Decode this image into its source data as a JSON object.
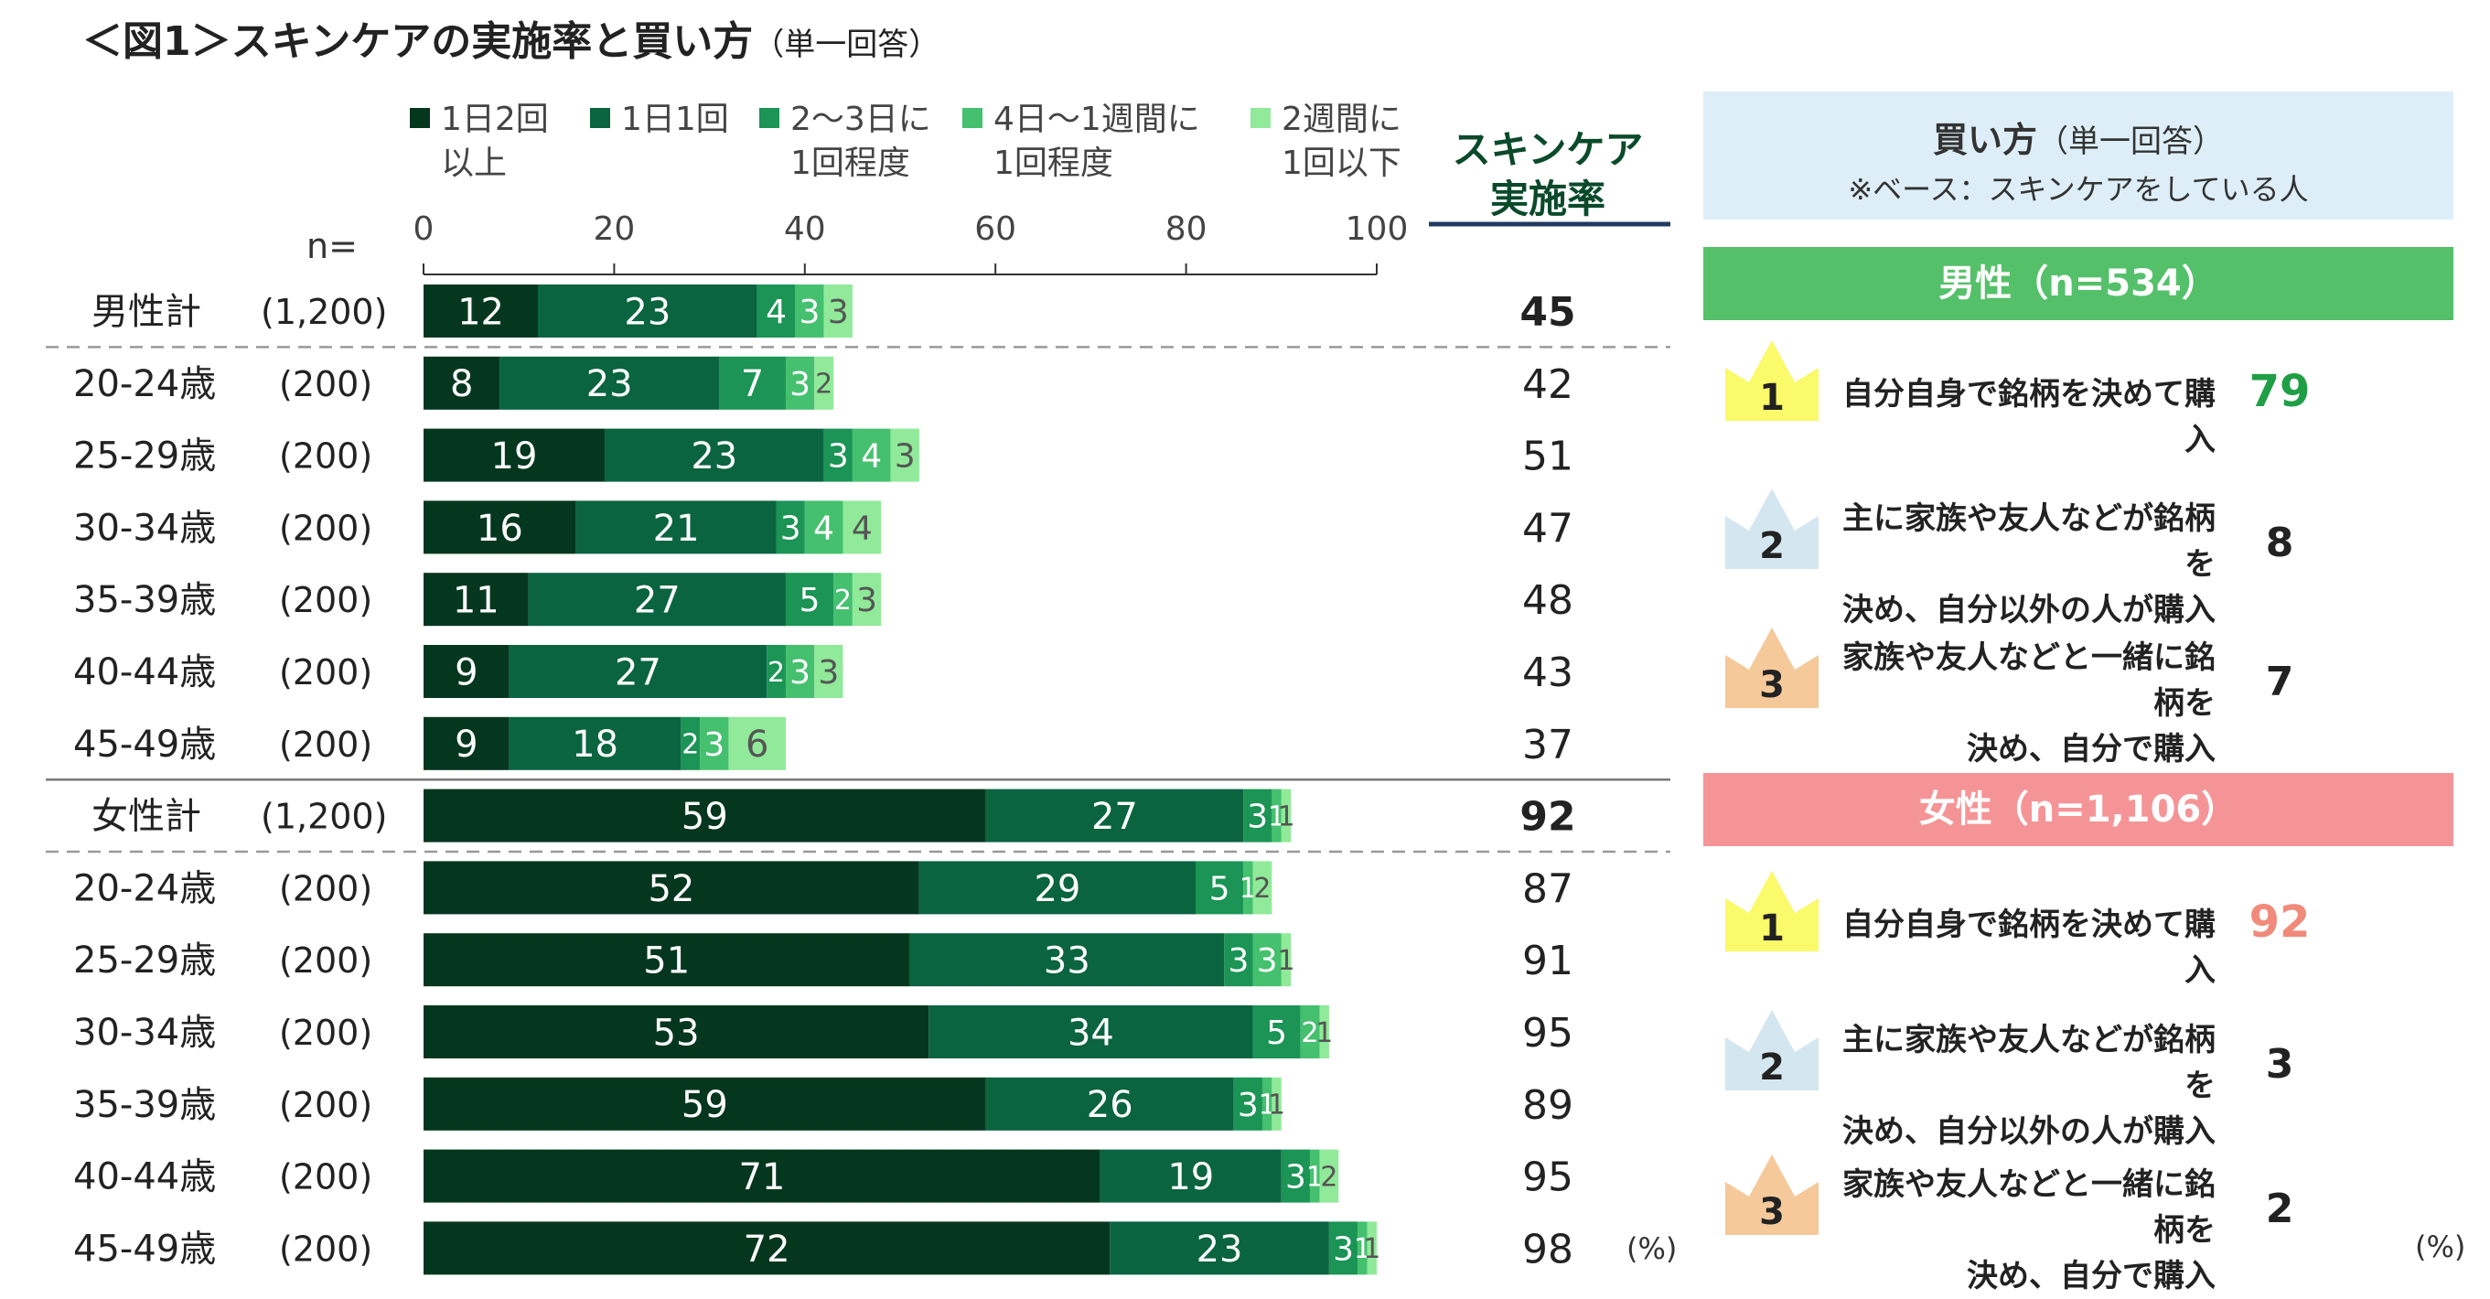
{
  "title": "＜図1＞スキンケアの実施率と買い方",
  "title_sub": "（単一回答）",
  "n_label": "n=",
  "rate_header": [
    "スキンケア",
    "実施率"
  ],
  "unit_pct": "(%)",
  "colors": {
    "seg": [
      "#05371f",
      "#0a6440",
      "#1b9455",
      "#44c06e",
      "#90ea99"
    ],
    "seg_text": [
      "#ffffff",
      "#ffffff",
      "#ffffff",
      "#ffffff",
      "#555555"
    ],
    "male_band": "#55c06a",
    "female_band": "#f59496",
    "panel_header": "#ddeef8",
    "crown1": "#fafa6a",
    "crown2": "#d4e6f0",
    "crown3": "#f5c99a",
    "male_top": "#1f9e46",
    "female_top": "#f08a7a",
    "rate_rule": "#1f3a60"
  },
  "chart_data": {
    "type": "bar",
    "orientation": "horizontal",
    "stacked": true,
    "xlim": [
      0,
      100
    ],
    "xticks": [
      0,
      20,
      40,
      60,
      80,
      100
    ],
    "legend": [
      {
        "lines": [
          "1日2回",
          "以上"
        ]
      },
      {
        "lines": [
          "1日1回"
        ]
      },
      {
        "lines": [
          "2～3日に",
          "1回程度"
        ]
      },
      {
        "lines": [
          "4日～1週間に",
          "1回程度"
        ]
      },
      {
        "lines": [
          "2週間に",
          "1回以下"
        ]
      }
    ],
    "rows": [
      {
        "label": "男性計",
        "n": "(1,200)",
        "total": true,
        "values": [
          12,
          23,
          4,
          3,
          3
        ],
        "rate": 45
      },
      {
        "label": "20-24歳",
        "n": "(200)",
        "values": [
          8,
          23,
          7,
          3,
          2
        ],
        "rate": 42
      },
      {
        "label": "25-29歳",
        "n": "(200)",
        "values": [
          19,
          23,
          3,
          4,
          3
        ],
        "rate": 51
      },
      {
        "label": "30-34歳",
        "n": "(200)",
        "values": [
          16,
          21,
          3,
          4,
          4
        ],
        "rate": 47
      },
      {
        "label": "35-39歳",
        "n": "(200)",
        "values": [
          11,
          27,
          5,
          2,
          3
        ],
        "rate": 48
      },
      {
        "label": "40-44歳",
        "n": "(200)",
        "values": [
          9,
          27,
          2,
          3,
          3
        ],
        "rate": 43
      },
      {
        "label": "45-49歳",
        "n": "(200)",
        "values": [
          9,
          18,
          2,
          3,
          6
        ],
        "rate": 37
      },
      {
        "label": "女性計",
        "n": "(1,200)",
        "total": true,
        "values": [
          59,
          27,
          3,
          1,
          1
        ],
        "rate": 92
      },
      {
        "label": "20-24歳",
        "n": "(200)",
        "values": [
          52,
          29,
          5,
          1,
          2
        ],
        "rate": 87
      },
      {
        "label": "25-29歳",
        "n": "(200)",
        "values": [
          51,
          33,
          3,
          3,
          1
        ],
        "rate": 91
      },
      {
        "label": "30-34歳",
        "n": "(200)",
        "values": [
          53,
          34,
          5,
          2,
          1
        ],
        "rate": 95
      },
      {
        "label": "35-39歳",
        "n": "(200)",
        "values": [
          59,
          26,
          3,
          1,
          1
        ],
        "rate": 89
      },
      {
        "label": "40-44歳",
        "n": "(200)",
        "values": [
          71,
          19,
          3,
          1,
          2
        ],
        "rate": 95
      },
      {
        "label": "45-49歳",
        "n": "(200)",
        "values": [
          72,
          23,
          3,
          1,
          1
        ],
        "rate": 98
      }
    ]
  },
  "panel": {
    "title": "買い方",
    "title_sub": "（単一回答）",
    "base": "※ベース：スキンケアをしている人",
    "male": {
      "band": "男性（n=534）",
      "items": [
        {
          "rank": "1",
          "lines": [
            "自分自身で銘柄を決めて購入"
          ],
          "value": "79"
        },
        {
          "rank": "2",
          "lines": [
            "主に家族や友人などが銘柄を",
            "決め、自分以外の人が購入"
          ],
          "value": "8"
        },
        {
          "rank": "3",
          "lines": [
            "家族や友人などと一緒に銘柄を",
            "決め、自分で購入"
          ],
          "value": "7"
        }
      ]
    },
    "female": {
      "band": "女性（n=1,106）",
      "items": [
        {
          "rank": "1",
          "lines": [
            "自分自身で銘柄を決めて購入"
          ],
          "value": "92"
        },
        {
          "rank": "2",
          "lines": [
            "主に家族や友人などが銘柄を",
            "決め、自分以外の人が購入"
          ],
          "value": "3"
        },
        {
          "rank": "3",
          "lines": [
            "家族や友人などと一緒に銘柄を",
            "決め、自分で購入"
          ],
          "value": "2"
        }
      ]
    }
  }
}
